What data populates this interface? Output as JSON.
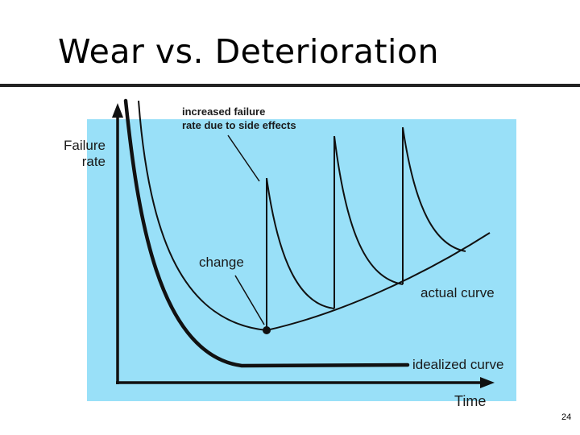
{
  "slide": {
    "title": "Wear vs. Deterioration",
    "page_number": "24"
  },
  "diagram": {
    "background_color": "#99e0f8",
    "y_axis_label_line1": "Failure",
    "y_axis_label_line2": "rate",
    "x_axis_label": "Time",
    "annotation_side_effects_line1": "increased failure",
    "annotation_side_effects_line2": "rate due to side effects",
    "annotation_change": "change",
    "actual_curve_label": "actual curve",
    "idealized_curve_label": "idealized curve"
  }
}
